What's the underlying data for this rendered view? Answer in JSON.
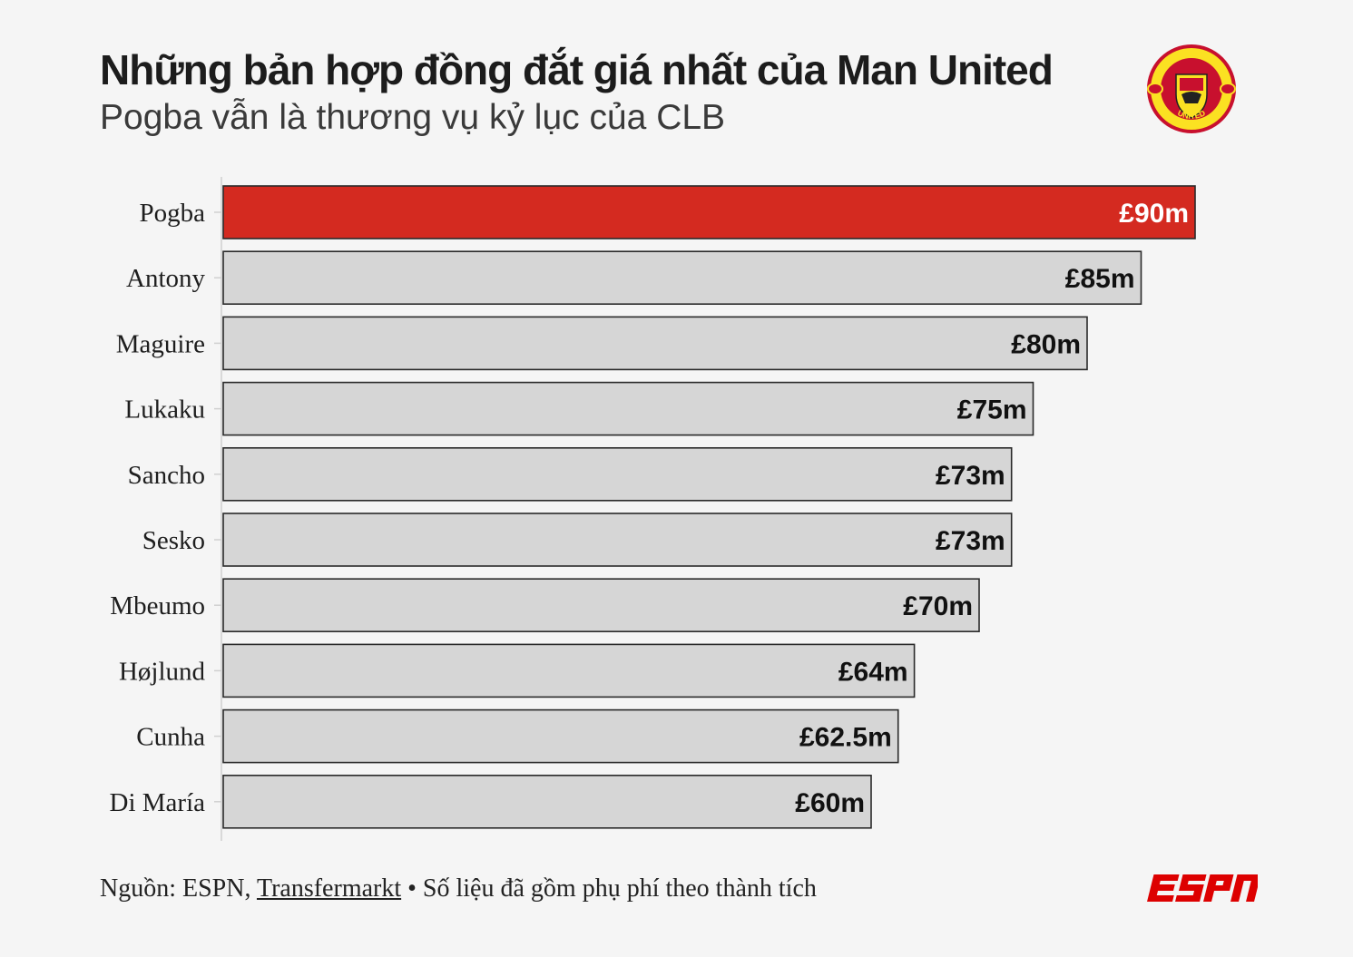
{
  "header": {
    "title": "Những bản hợp đồng đắt giá nhất của Man United",
    "subtitle": "Pogba vẫn là thương vụ kỷ lục của CLB"
  },
  "logos": {
    "crest": {
      "icon": "man-united-crest-icon",
      "text_top": "MANCHESTER",
      "text_bottom": "UNITED"
    },
    "brand": {
      "icon": "espn-logo-icon",
      "text": "ESPN"
    }
  },
  "colors": {
    "highlight": "#d42a20",
    "bar": "#d6d6d6",
    "bar_border": "#2a2a2a",
    "background": "#f5f5f5"
  },
  "footer": {
    "source_prefix": "Nguồn: ESPN, ",
    "source_link": "Transfermarkt",
    "note": " • Số liệu đã gồm phụ phí theo thành tích"
  },
  "chart_data": {
    "type": "bar",
    "orientation": "horizontal",
    "categories": [
      "Pogba",
      "Antony",
      "Maguire",
      "Lukaku",
      "Sancho",
      "Sesko",
      "Mbeumo",
      "Højlund",
      "Cunha",
      "Di María"
    ],
    "values": [
      90,
      85,
      80,
      75,
      73,
      73,
      70,
      64,
      62.5,
      60
    ],
    "labels": [
      "£90m",
      "£85m",
      "£80m",
      "£75m",
      "£73m",
      "£73m",
      "£70m",
      "£64m",
      "£62.5m",
      "£60m"
    ],
    "highlight_index": 0,
    "xlim": [
      0,
      90
    ],
    "grid": false,
    "legend": "none"
  }
}
